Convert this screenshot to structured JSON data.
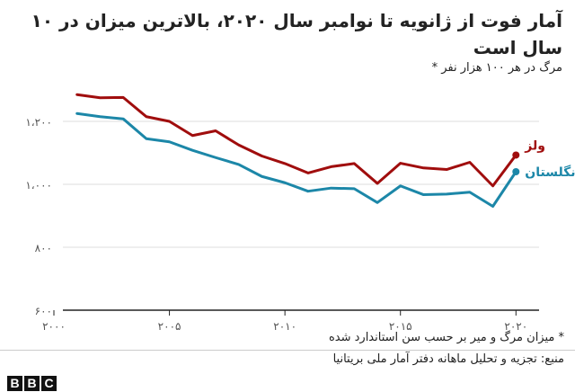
{
  "header": {
    "title": "آمار فوت از ژانویه تا نوامبر سال ۲۰۲۰، بالاترین میزان در ۱۰ سال است",
    "subtitle": "مرگ در هر ۱۰۰ هزار نفر *"
  },
  "footer": {
    "footnote": "* میزان مرگ و میر بر حسب سن استاندارد شده",
    "source": "منبع: تجزیه و تحلیل ماهانه دفتر آمار ملی بریتانیا",
    "logo_letters": [
      "B",
      "B",
      "C"
    ]
  },
  "colors": {
    "wales": "#a00d0d",
    "england": "#1c87a8",
    "grid": "#dcdcdc",
    "axis": "#222222"
  },
  "chart_data": {
    "type": "line",
    "x": [
      2001,
      2002,
      2003,
      2004,
      2005,
      2006,
      2007,
      2008,
      2009,
      2010,
      2011,
      2012,
      2013,
      2014,
      2015,
      2016,
      2017,
      2018,
      2019,
      2020
    ],
    "series": [
      {
        "name": "ولز",
        "color": "#a00d0d",
        "values": [
          1285,
          1275,
          1276,
          1215,
          1200,
          1155,
          1170,
          1125,
          1090,
          1066,
          1036,
          1056,
          1066,
          1003,
          1067,
          1052,
          1047,
          1070,
          995,
          1093
        ]
      },
      {
        "name": "انگلستان",
        "color": "#1c87a8",
        "values": [
          1225,
          1215,
          1208,
          1145,
          1135,
          1108,
          1085,
          1063,
          1025,
          1005,
          978,
          988,
          986,
          942,
          995,
          967,
          969,
          975,
          930,
          1040
        ]
      }
    ],
    "ylim": [
      600,
      1300
    ],
    "yticks": [
      {
        "value": 600,
        "label": "۶۰۰"
      },
      {
        "value": 800,
        "label": "۸۰۰"
      },
      {
        "value": 1000,
        "label": "۱،۰۰۰"
      },
      {
        "value": 1200,
        "label": "۱،۲۰۰"
      }
    ],
    "xticks": [
      {
        "value": 2000,
        "label": "۲۰۰۰"
      },
      {
        "value": 2005,
        "label": "۲۰۰۵"
      },
      {
        "value": 2010,
        "label": "۲۰۱۰"
      },
      {
        "value": 2015,
        "label": "۲۰۱۵"
      },
      {
        "value": 2020,
        "label": "۲۰۲۰"
      }
    ],
    "xlim": [
      2000,
      2021
    ],
    "grid": true
  }
}
